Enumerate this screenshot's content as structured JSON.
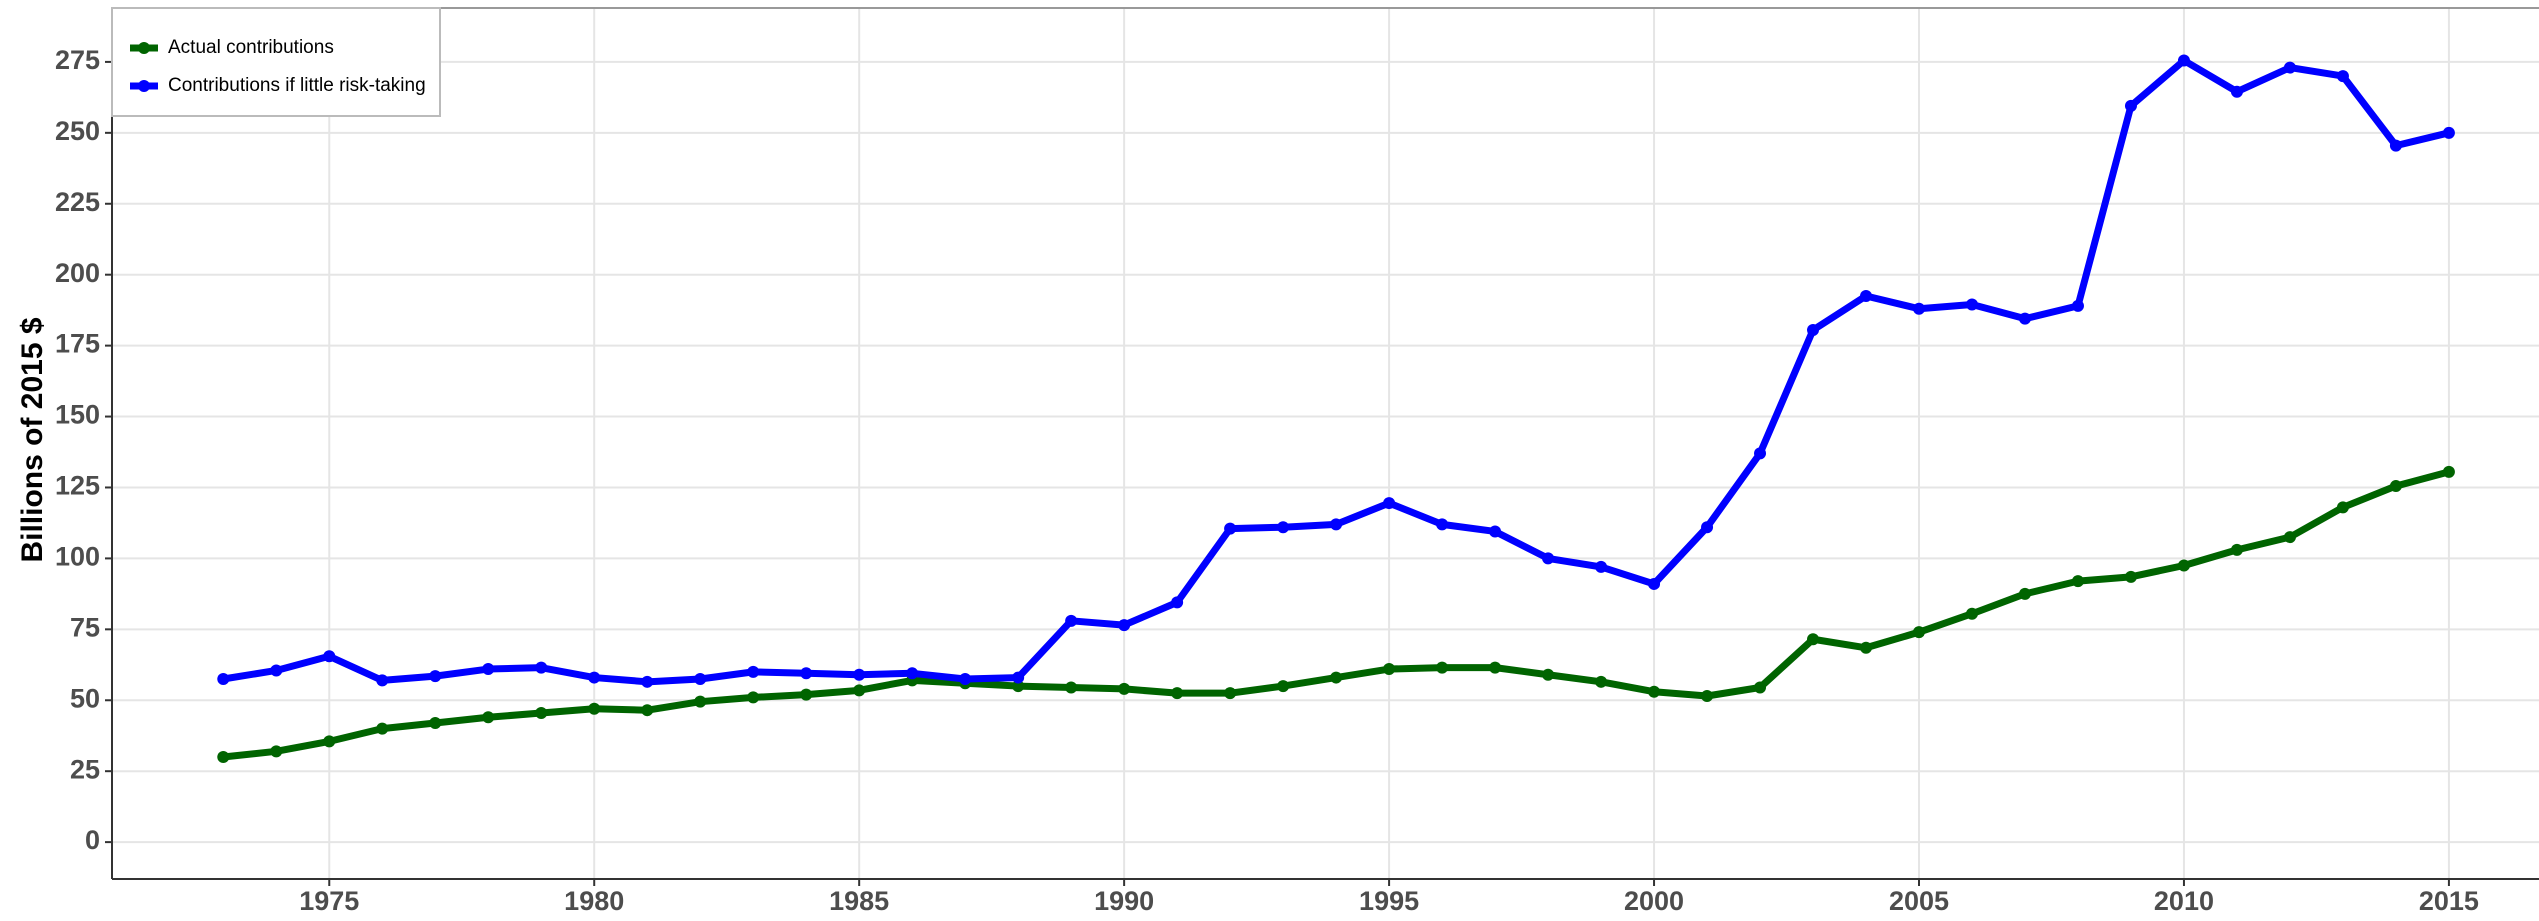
{
  "chart_data": {
    "type": "line",
    "y_label": "Billions of 2015 $",
    "x": [
      1973,
      1974,
      1975,
      1976,
      1977,
      1978,
      1979,
      1980,
      1981,
      1982,
      1983,
      1984,
      1985,
      1986,
      1987,
      1988,
      1989,
      1990,
      1991,
      1992,
      1993,
      1994,
      1995,
      1996,
      1997,
      1998,
      1999,
      2000,
      2001,
      2002,
      2003,
      2004,
      2005,
      2006,
      2007,
      2008,
      2009,
      2010,
      2011,
      2012,
      2013,
      2014,
      2015
    ],
    "series": [
      {
        "name": "Actual contributions",
        "color": "#006400",
        "values": [
          30,
          32,
          35.5,
          40,
          42,
          44,
          45.5,
          47,
          46.5,
          49.5,
          51,
          52,
          53.5,
          57,
          56,
          55,
          54.5,
          54,
          52.5,
          52.5,
          55,
          58,
          61,
          61.5,
          61.5,
          59,
          56.5,
          53,
          51.5,
          54.5,
          71.5,
          68.5,
          74,
          80.5,
          87.5,
          92,
          93.5,
          97.5,
          103,
          107.5,
          118,
          125.5,
          130.5
        ]
      },
      {
        "name": "Contributions if little risk-taking",
        "color": "#0000ff",
        "values": [
          57.5,
          60.5,
          65.5,
          57,
          58.5,
          61,
          61.5,
          58,
          56.5,
          57.5,
          60,
          59.5,
          59,
          59.5,
          57.5,
          58,
          78,
          76.5,
          84.5,
          110.5,
          111,
          112,
          119.5,
          112,
          109.5,
          100,
          97,
          91,
          111,
          137,
          180.5,
          192.5,
          188,
          189.5,
          184.5,
          189,
          259.5,
          275.5,
          264.5,
          273,
          270,
          245.5,
          250
        ]
      }
    ],
    "xlim": [
      1970.9,
      2016.7
    ],
    "xticks": [
      1975,
      1980,
      1985,
      1990,
      1995,
      2000,
      2005,
      2010,
      2015
    ],
    "ylim": [
      -13,
      294
    ],
    "yticks": [
      0,
      25,
      50,
      75,
      100,
      125,
      150,
      175,
      200,
      225,
      250,
      275
    ],
    "grid": true,
    "legend": "top-left"
  }
}
